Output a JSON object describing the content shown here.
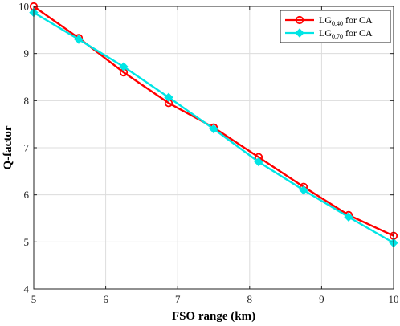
{
  "chart_data": {
    "type": "line",
    "xlabel": "FSO range (km)",
    "ylabel": "Q-factor",
    "xlim": [
      5,
      10
    ],
    "ylim": [
      4,
      10
    ],
    "xticks": [
      5,
      6,
      7,
      8,
      9,
      10
    ],
    "yticks": [
      4,
      5,
      6,
      7,
      8,
      9,
      10
    ],
    "grid": true,
    "legend_position": "top-right",
    "series": [
      {
        "name": "LG0,40 for CA",
        "legend_main": "LG",
        "legend_sub": "0,40",
        "legend_suffix": " for CA",
        "color": "#ff0000",
        "marker": "circle",
        "x": [
          5,
          5.625,
          6.25,
          6.875,
          7.5,
          8.125,
          8.75,
          9.375,
          10
        ],
        "y": [
          10.0,
          9.33,
          8.6,
          7.95,
          7.43,
          6.8,
          6.17,
          5.57,
          5.13
        ]
      },
      {
        "name": "LG0,70 for CA",
        "legend_main": "LG",
        "legend_sub": "0,70",
        "legend_suffix": " for CA",
        "color": "#00e5e5",
        "marker": "diamond",
        "x": [
          5,
          5.625,
          6.25,
          6.875,
          7.5,
          8.125,
          8.75,
          9.375,
          10
        ],
        "y": [
          9.87,
          9.3,
          8.72,
          8.07,
          7.4,
          6.7,
          6.1,
          5.53,
          4.98
        ]
      }
    ]
  }
}
